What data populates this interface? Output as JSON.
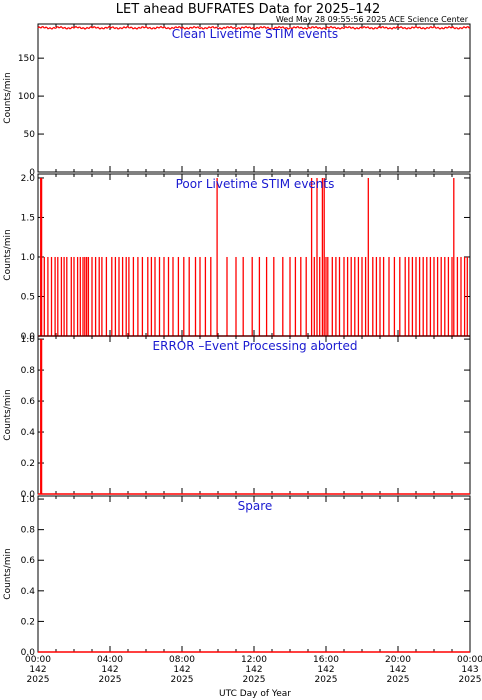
{
  "title": "LET ahead BUFRATES Data for 2025–142",
  "subtitle": "Wed May 28 09:55:56 2025 ACE Science Center",
  "xlabel": "UTC Day of Year",
  "colors": {
    "series": "#ff0000",
    "panel_title": "#1a1ad0",
    "axes": "#000000"
  },
  "x_ticks": [
    {
      "l1": "00:00",
      "l2": "142",
      "l3": "2025"
    },
    {
      "l1": "04:00",
      "l2": "142",
      "l3": "2025"
    },
    {
      "l1": "08:00",
      "l2": "142",
      "l3": "2025"
    },
    {
      "l1": "12:00",
      "l2": "142",
      "l3": "2025"
    },
    {
      "l1": "16:00",
      "l2": "142",
      "l3": "2025"
    },
    {
      "l1": "20:00",
      "l2": "142",
      "l3": "2025"
    },
    {
      "l1": "00:00",
      "l2": "143",
      "l3": "2025"
    }
  ],
  "chart_data": [
    {
      "type": "line",
      "panel_title": "Clean Livetime STIM events",
      "ylabel": "Counts/min",
      "xlim": [
        0,
        24
      ],
      "ylim": [
        0,
        195
      ],
      "y_ticks": [
        "0",
        "50",
        "100",
        "150"
      ],
      "y_tick_values": [
        0,
        50,
        100,
        150
      ],
      "baseline": 190,
      "spikes": []
    },
    {
      "type": "line",
      "panel_title": "Poor Livetime STIM events",
      "ylabel": "Counts/min",
      "xlim": [
        0,
        24
      ],
      "ylim": [
        0,
        2.05
      ],
      "y_ticks": [
        "0.0",
        "0.5",
        "1.0",
        "1.5",
        "2.0"
      ],
      "y_tick_values": [
        0,
        0.5,
        1.0,
        1.5,
        2.0
      ],
      "baseline": 0,
      "spikes": [
        [
          0.15,
          2
        ],
        [
          0.2,
          2
        ],
        [
          0.35,
          1
        ],
        [
          0.55,
          1
        ],
        [
          0.75,
          1
        ],
        [
          0.95,
          1
        ],
        [
          1.1,
          1
        ],
        [
          1.3,
          1
        ],
        [
          1.45,
          1
        ],
        [
          1.6,
          1
        ],
        [
          1.85,
          1
        ],
        [
          2.0,
          1
        ],
        [
          2.2,
          1
        ],
        [
          2.35,
          1
        ],
        [
          2.5,
          1
        ],
        [
          2.6,
          1
        ],
        [
          2.7,
          1
        ],
        [
          2.8,
          1
        ],
        [
          3.0,
          1
        ],
        [
          3.2,
          1
        ],
        [
          3.4,
          1
        ],
        [
          3.55,
          1
        ],
        [
          3.8,
          1
        ],
        [
          4.1,
          1
        ],
        [
          4.3,
          1
        ],
        [
          4.5,
          1
        ],
        [
          4.7,
          1
        ],
        [
          4.9,
          1
        ],
        [
          5.05,
          1
        ],
        [
          5.3,
          1
        ],
        [
          5.55,
          1
        ],
        [
          5.8,
          1
        ],
        [
          6.1,
          1
        ],
        [
          6.3,
          1
        ],
        [
          6.5,
          1
        ],
        [
          6.75,
          1
        ],
        [
          7.0,
          1
        ],
        [
          7.25,
          1
        ],
        [
          7.5,
          1
        ],
        [
          7.8,
          1
        ],
        [
          8.1,
          1
        ],
        [
          8.4,
          1
        ],
        [
          8.75,
          1
        ],
        [
          9.0,
          1
        ],
        [
          9.3,
          1
        ],
        [
          9.6,
          1
        ],
        [
          9.95,
          2
        ],
        [
          10.5,
          1
        ],
        [
          11.0,
          1
        ],
        [
          11.4,
          1
        ],
        [
          11.9,
          1
        ],
        [
          12.3,
          1
        ],
        [
          12.7,
          1
        ],
        [
          13.1,
          1
        ],
        [
          13.6,
          1
        ],
        [
          14.0,
          1
        ],
        [
          14.3,
          1
        ],
        [
          14.6,
          1
        ],
        [
          14.9,
          1
        ],
        [
          15.2,
          2
        ],
        [
          15.35,
          1
        ],
        [
          15.5,
          2
        ],
        [
          15.65,
          1
        ],
        [
          15.8,
          2
        ],
        [
          15.9,
          2
        ],
        [
          16.0,
          1
        ],
        [
          16.1,
          1
        ],
        [
          16.35,
          1
        ],
        [
          16.55,
          1
        ],
        [
          16.75,
          1
        ],
        [
          17.0,
          1
        ],
        [
          17.2,
          1
        ],
        [
          17.4,
          1
        ],
        [
          17.6,
          1
        ],
        [
          17.8,
          1
        ],
        [
          18.0,
          1
        ],
        [
          18.2,
          1
        ],
        [
          18.35,
          2
        ],
        [
          18.6,
          1
        ],
        [
          18.8,
          1
        ],
        [
          19.0,
          1
        ],
        [
          19.2,
          1
        ],
        [
          19.5,
          1
        ],
        [
          19.8,
          1
        ],
        [
          20.1,
          1
        ],
        [
          20.4,
          1
        ],
        [
          20.6,
          1
        ],
        [
          20.8,
          1
        ],
        [
          21.0,
          1
        ],
        [
          21.2,
          1
        ],
        [
          21.4,
          1
        ],
        [
          21.6,
          1
        ],
        [
          21.8,
          1
        ],
        [
          22.0,
          1
        ],
        [
          22.2,
          1
        ],
        [
          22.4,
          1
        ],
        [
          22.6,
          1
        ],
        [
          22.8,
          1
        ],
        [
          23.0,
          1
        ],
        [
          23.1,
          2
        ],
        [
          23.3,
          1
        ],
        [
          23.5,
          1
        ],
        [
          23.7,
          1
        ],
        [
          23.85,
          1
        ]
      ]
    },
    {
      "type": "line",
      "panel_title": "ERROR –Event Processing aborted",
      "ylabel": "Counts/min",
      "xlim": [
        0,
        24
      ],
      "ylim": [
        0,
        1.02
      ],
      "y_ticks": [
        "0.0",
        "0.2",
        "0.4",
        "0.6",
        "0.8",
        "1.0"
      ],
      "y_tick_values": [
        0,
        0.2,
        0.4,
        0.6,
        0.8,
        1.0
      ],
      "baseline": 0,
      "spikes": [
        [
          0.15,
          1
        ],
        [
          0.2,
          1
        ]
      ]
    },
    {
      "type": "line",
      "panel_title": "Spare",
      "ylabel": "Counts/min",
      "xlim": [
        0,
        24
      ],
      "ylim": [
        0,
        1.02
      ],
      "y_ticks": [
        "0.0",
        "0.2",
        "0.4",
        "0.6",
        "0.8",
        "1.0"
      ],
      "y_tick_values": [
        0,
        0.2,
        0.4,
        0.6,
        0.8,
        1.0
      ],
      "baseline": 0,
      "spikes": []
    }
  ]
}
